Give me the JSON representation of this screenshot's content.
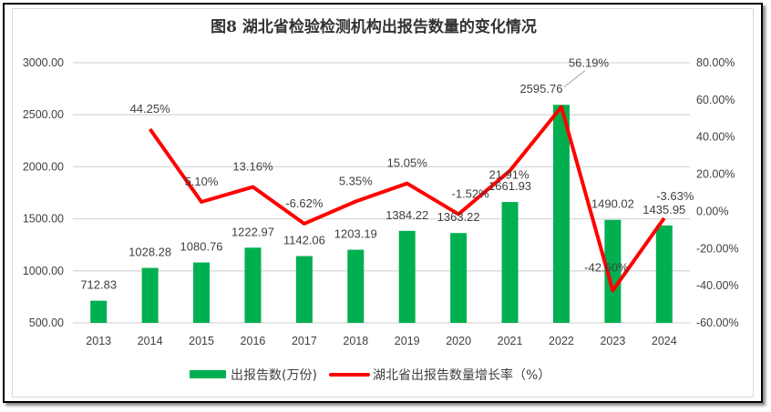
{
  "chart_data": {
    "type": "bar+line",
    "title": "图8  湖北省检验检测机构出报告数量的变化情况",
    "categories": [
      "2013",
      "2014",
      "2015",
      "2016",
      "2017",
      "2018",
      "2019",
      "2020",
      "2021",
      "2022",
      "2023",
      "2024"
    ],
    "series": [
      {
        "name": "出报告数(万份)",
        "type": "bar",
        "axis": "left",
        "color": "#00b050",
        "values": [
          712.83,
          1028.28,
          1080.76,
          1222.97,
          1142.06,
          1203.19,
          1384.22,
          1363.22,
          1661.93,
          2595.76,
          1490.02,
          1435.95
        ],
        "labels": [
          "712.83",
          "1028.28",
          "1080.76",
          "1222.97",
          "1142.06",
          "1203.19",
          "1384.22",
          "1363.22",
          "1661.93",
          "2595.76",
          "1490.02",
          "1435.95"
        ]
      },
      {
        "name": "湖北省出报告数量增长率（%）",
        "type": "line",
        "axis": "right",
        "color": "#ff0000",
        "values": [
          null,
          44.25,
          5.1,
          13.16,
          -6.62,
          5.35,
          15.05,
          -1.52,
          21.91,
          56.19,
          -42.6,
          -3.63
        ],
        "labels": [
          "",
          "44.25%",
          "5.10%",
          "13.16%",
          "-6.62%",
          "5.35%",
          "15.05%",
          "-1.52%",
          "21.91%",
          "56.19%",
          "-42.60%",
          "-3.63%"
        ]
      }
    ],
    "left_axis": {
      "ylim": [
        500,
        3000
      ],
      "ticks": [
        "500.00",
        "1000.00",
        "1500.00",
        "2000.00",
        "2500.00",
        "3000.00"
      ]
    },
    "right_axis": {
      "ylim": [
        -60,
        80
      ],
      "ticks": [
        "-60.00%",
        "-40.00%",
        "-20.00%",
        "0.00%",
        "20.00%",
        "40.00%",
        "60.00%",
        "80.00%"
      ]
    },
    "grid": true,
    "legend": "bottom"
  }
}
